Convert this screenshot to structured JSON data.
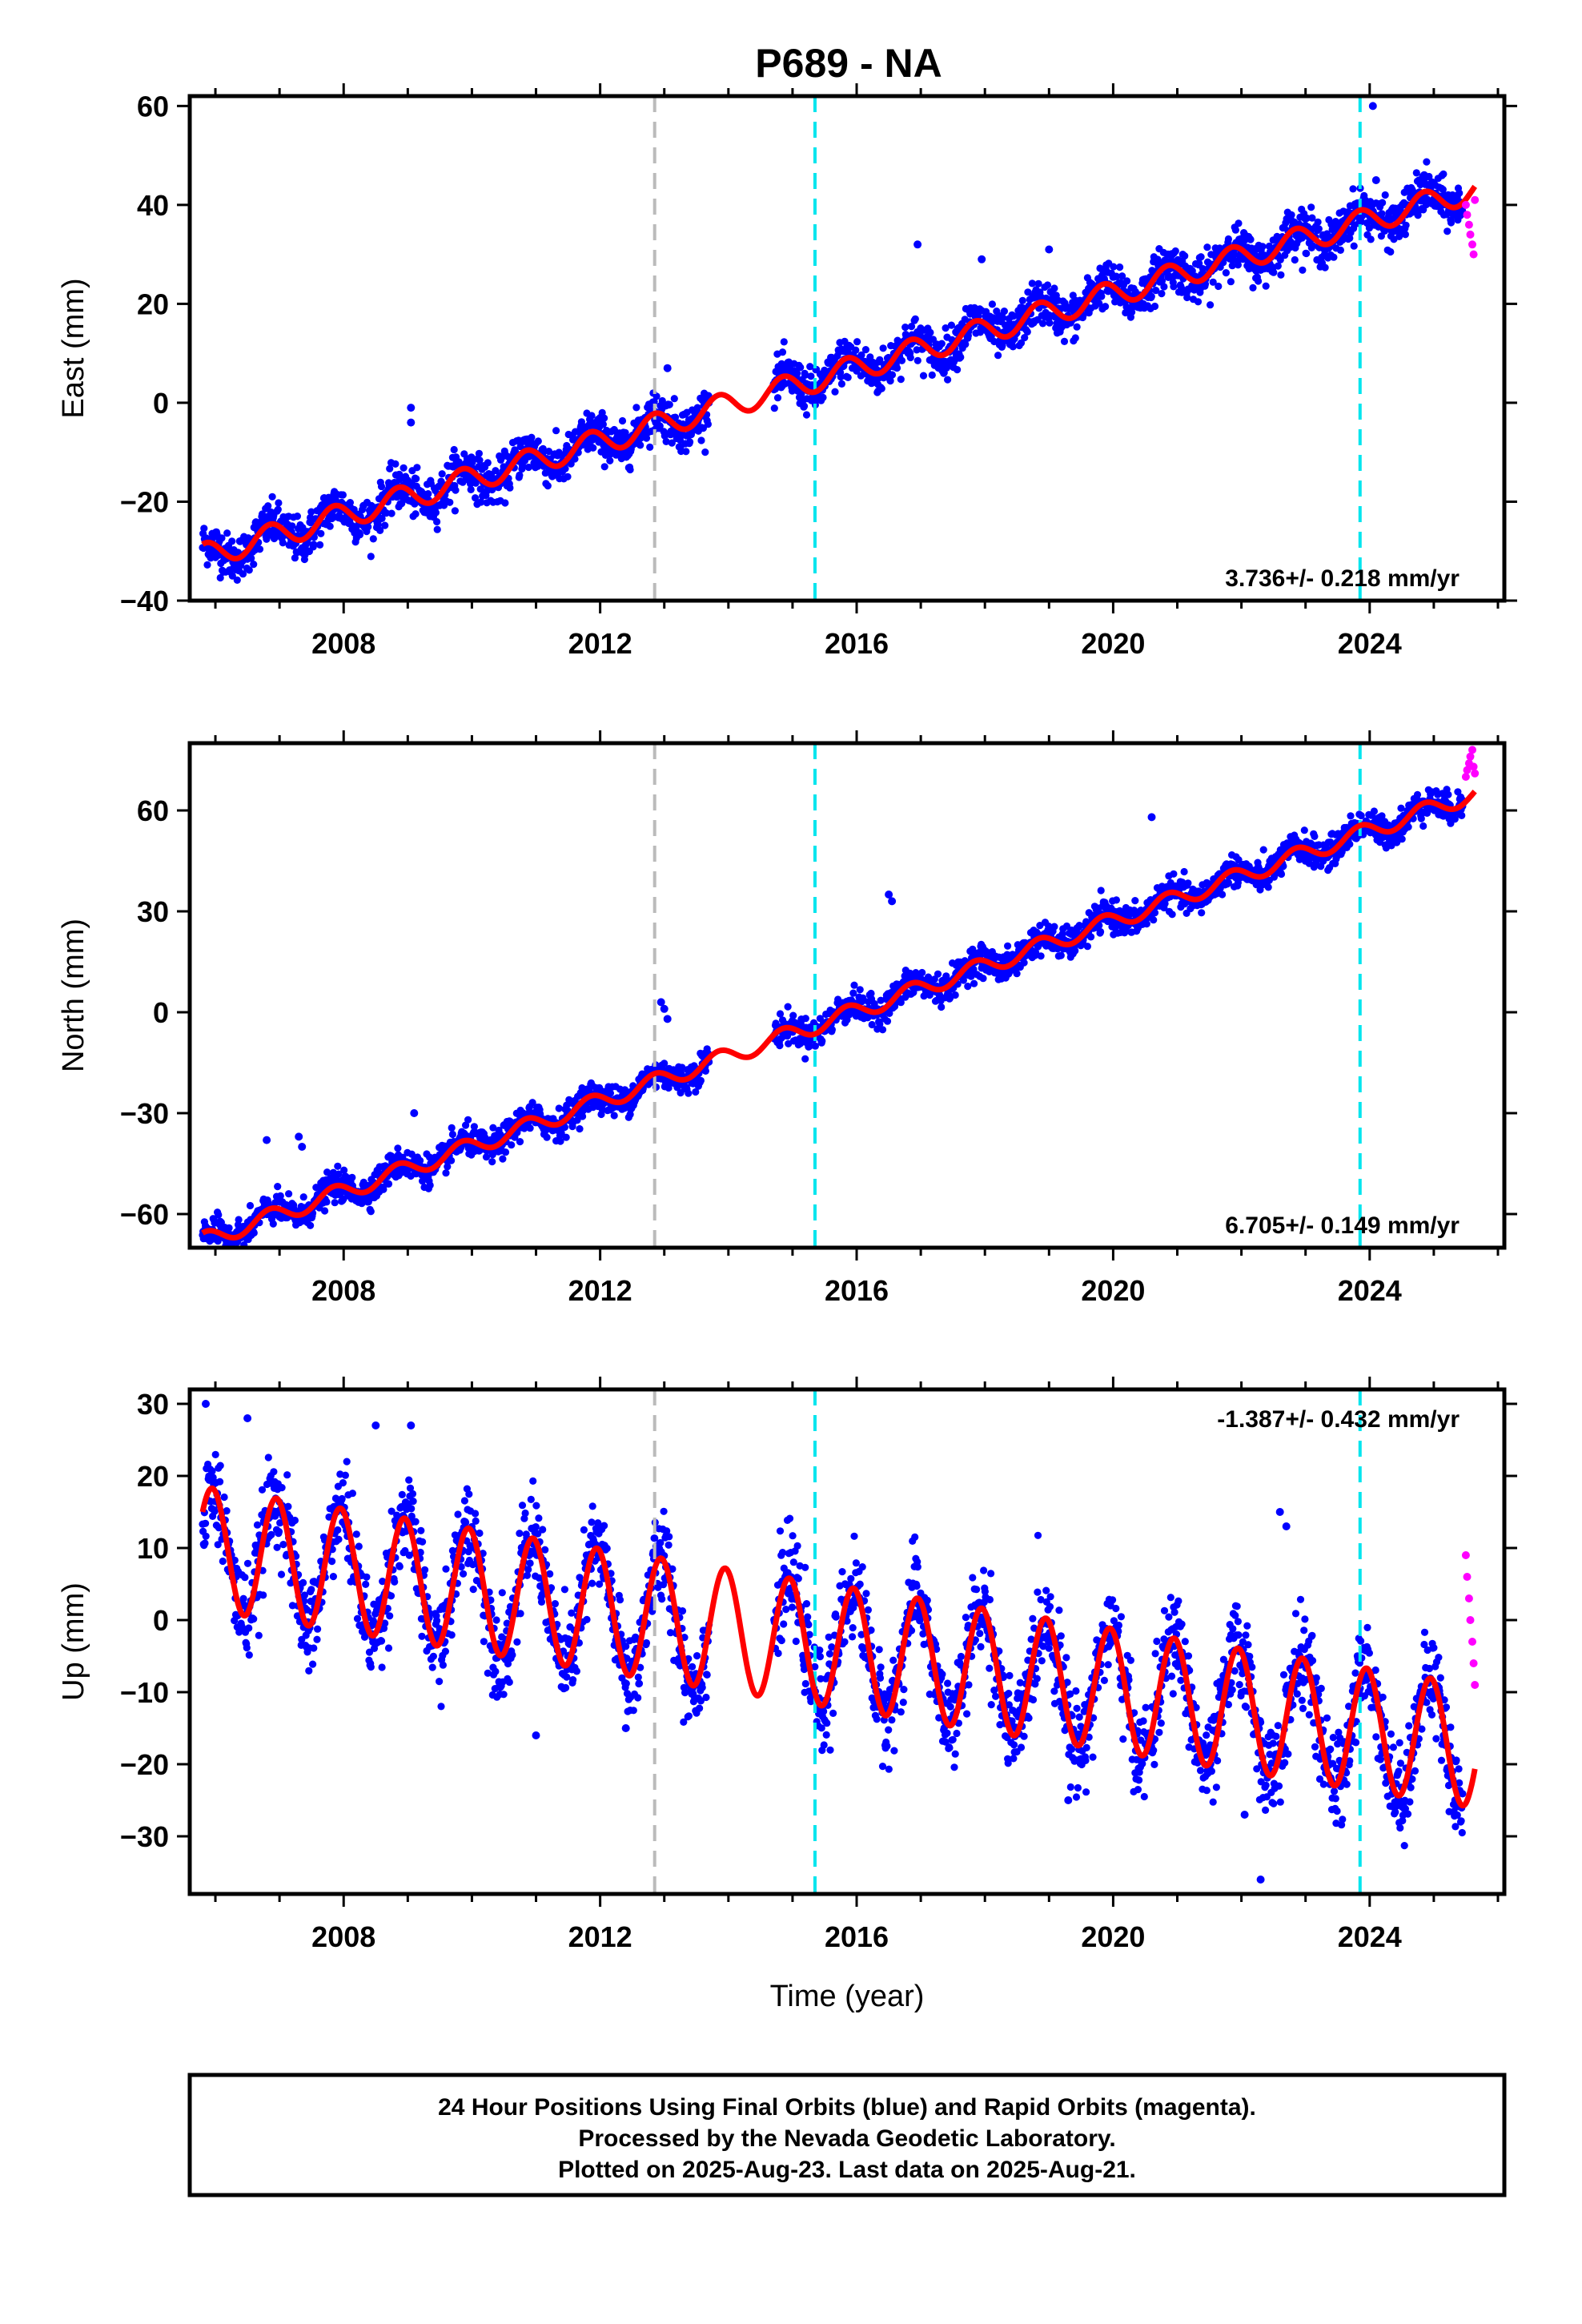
{
  "chart_data": {
    "type": "scatter",
    "title": "P689 - NA",
    "xlabel": "Time (year)",
    "x_ticks": [
      2008,
      2012,
      2016,
      2020,
      2024
    ],
    "xlim": [
      2005.6,
      2026.1
    ],
    "colors": {
      "final_orbits": "#0000ff",
      "rapid_orbits": "#ff00ff",
      "model": "#ff0000",
      "event_gray": "#bbbbbb",
      "event_cyan": "#00e5ee"
    },
    "event_lines": [
      {
        "x": 2012.85,
        "color": "gray"
      },
      {
        "x": 2015.35,
        "color": "cyan"
      },
      {
        "x": 2023.85,
        "color": "cyan"
      }
    ],
    "data_gap": [
      2013.7,
      2014.7
    ],
    "last_final_epoch": 2025.45,
    "last_epoch": 2025.64,
    "panels": [
      {
        "component": "east",
        "ylabel": "East (mm)",
        "ylim": [
          -40,
          62
        ],
        "y_ticks": [
          -40,
          -20,
          0,
          20,
          40,
          60
        ],
        "rate": "3.736+/- 0.218 mm/yr",
        "rate_pos": "bottom-right",
        "model": {
          "t0": 2005.8,
          "y0": -31.0,
          "slope": 3.736,
          "amp": 2.5,
          "phase": 2005.85,
          "scatter": 2.2
        },
        "outliers": [
          [
            2009.05,
            -1
          ],
          [
            2009.05,
            -4
          ],
          [
            2013.05,
            7
          ],
          [
            2016.95,
            32
          ],
          [
            2017.95,
            29
          ],
          [
            2019.0,
            31
          ],
          [
            2024.05,
            60
          ],
          [
            2024.1,
            45
          ],
          [
            2024.85,
            46
          ]
        ],
        "rapid": [
          [
            2025.5,
            40
          ],
          [
            2025.52,
            38
          ],
          [
            2025.55,
            36
          ],
          [
            2025.57,
            34
          ],
          [
            2025.6,
            32
          ],
          [
            2025.62,
            30
          ],
          [
            2025.64,
            41
          ]
        ]
      },
      {
        "component": "north",
        "ylabel": "North (mm)",
        "ylim": [
          -70,
          80
        ],
        "y_ticks": [
          -60,
          -30,
          0,
          30,
          60
        ],
        "rate": "6.705+/- 0.149 mm/yr",
        "rate_pos": "bottom-right",
        "model": {
          "t0": 2005.8,
          "y0": -68.0,
          "slope": 6.705,
          "amp": 2.5,
          "phase": 2005.85,
          "scatter": 2.2
        },
        "outliers": [
          [
            2006.8,
            -38
          ],
          [
            2007.3,
            -37
          ],
          [
            2007.35,
            -40
          ],
          [
            2009.1,
            -30
          ],
          [
            2012.95,
            3
          ],
          [
            2013.0,
            1
          ],
          [
            2013.05,
            -2
          ],
          [
            2016.5,
            35
          ],
          [
            2016.55,
            33
          ],
          [
            2020.6,
            58
          ]
        ],
        "rapid": [
          [
            2025.5,
            70
          ],
          [
            2025.52,
            72
          ],
          [
            2025.55,
            74
          ],
          [
            2025.57,
            76
          ],
          [
            2025.6,
            78
          ],
          [
            2025.62,
            73
          ],
          [
            2025.64,
            71
          ]
        ]
      },
      {
        "component": "up",
        "ylabel": "Up (mm)",
        "ylim": [
          -38,
          32
        ],
        "y_ticks": [
          -30,
          -20,
          -10,
          0,
          10,
          20,
          30
        ],
        "rate": "-1.387+/- 0.432 mm/yr",
        "rate_pos": "top-right",
        "model": {
          "t0": 2005.8,
          "y0": 10.0,
          "slope": -1.387,
          "amp": 8.5,
          "phase": 2005.95,
          "scatter": 3.2
        },
        "outliers": [
          [
            2005.85,
            30
          ],
          [
            2006.5,
            28
          ],
          [
            2008.5,
            27
          ],
          [
            2009.05,
            27
          ],
          [
            2011.0,
            -16
          ],
          [
            2012.4,
            -15
          ],
          [
            2019.3,
            -25
          ],
          [
            2022.05,
            -27
          ],
          [
            2022.3,
            -36
          ],
          [
            2022.6,
            15
          ],
          [
            2022.7,
            13
          ]
        ],
        "rapid": [
          [
            2025.5,
            9
          ],
          [
            2025.52,
            6
          ],
          [
            2025.55,
            3
          ],
          [
            2025.57,
            0
          ],
          [
            2025.6,
            -3
          ],
          [
            2025.62,
            -6
          ],
          [
            2025.64,
            -9
          ]
        ]
      }
    ]
  },
  "footer": {
    "line1": "24 Hour Positions Using Final Orbits (blue) and Rapid Orbits (magenta).",
    "line2": "Processed by the Nevada Geodetic Laboratory.",
    "line3": "Plotted on 2025-Aug-23. Last data on 2025-Aug-21."
  }
}
